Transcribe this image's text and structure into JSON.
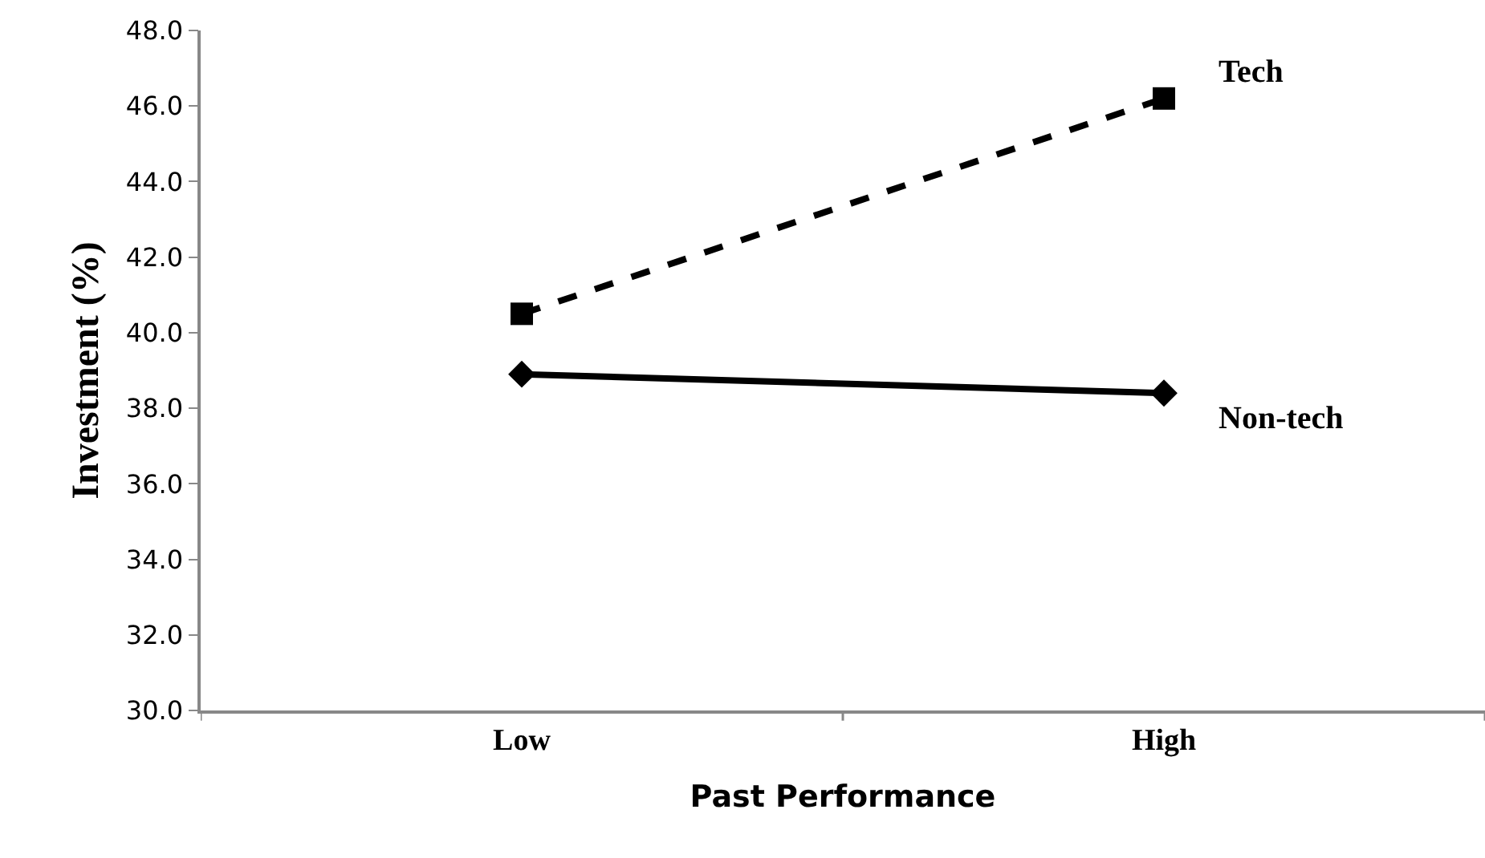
{
  "chart_data": {
    "type": "line",
    "xlabel": "Past Performance",
    "ylabel": "Investment (%)",
    "categories": [
      "Low",
      "High"
    ],
    "series": [
      {
        "name": "Tech",
        "color": "#000000",
        "values": [
          40.5,
          46.2
        ],
        "marker": "square",
        "line_style": "dashed"
      },
      {
        "name": "Non-tech",
        "color": "#000000",
        "values": [
          38.9,
          38.4
        ],
        "marker": "diamond",
        "line_style": "solid"
      }
    ],
    "ylim": [
      30,
      48
    ],
    "yticks": [
      {
        "value": 30,
        "label": "30.0"
      },
      {
        "value": 32,
        "label": "32.0"
      },
      {
        "value": 34,
        "label": "34.0"
      },
      {
        "value": 36,
        "label": "36.0"
      },
      {
        "value": 38,
        "label": "38.0"
      },
      {
        "value": 40,
        "label": "40.0"
      },
      {
        "value": 42,
        "label": "42.0"
      },
      {
        "value": 44,
        "label": "44.0"
      },
      {
        "value": 46,
        "label": "46.0"
      },
      {
        "value": 48,
        "label": "48.0"
      }
    ],
    "legend": false
  }
}
